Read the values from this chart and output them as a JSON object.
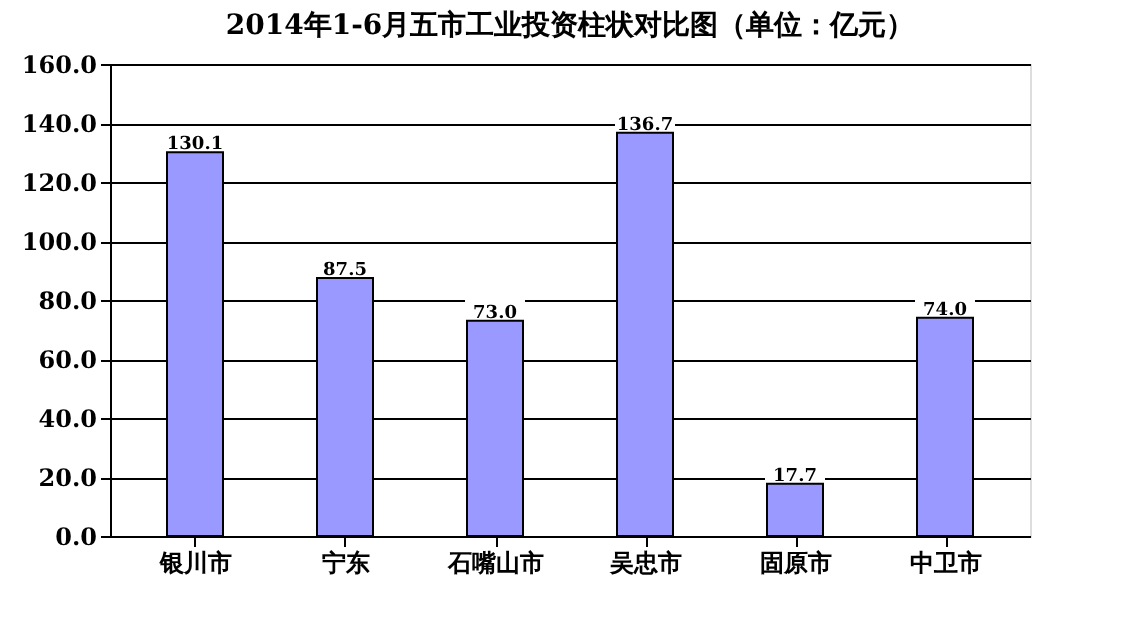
{
  "chart_data": {
    "type": "bar",
    "title": "2014年1-6月五市工业投资柱状对比图（单位：亿元）",
    "categories": [
      "银川市",
      "宁东",
      "石嘴山市",
      "吴忠市",
      "固原市",
      "中卫市"
    ],
    "values": [
      130.1,
      87.5,
      73.0,
      136.7,
      17.7,
      74.0
    ],
    "value_labels": [
      "130.1",
      "87.5",
      "73.0",
      "136.7",
      "17.7",
      "74.0"
    ],
    "color": "#9999ff",
    "ylim": [
      0,
      160
    ],
    "yticks": [
      {
        "value": 0,
        "label": "0.0"
      },
      {
        "value": 20,
        "label": "20.0"
      },
      {
        "value": 40,
        "label": "40.0"
      },
      {
        "value": 60,
        "label": "60.0"
      },
      {
        "value": 80,
        "label": "80.0"
      },
      {
        "value": 100,
        "label": "100.0"
      },
      {
        "value": 120,
        "label": "120.0"
      },
      {
        "value": 140,
        "label": "140.0"
      },
      {
        "value": 160,
        "label": "160.0"
      }
    ],
    "grid": "y"
  }
}
